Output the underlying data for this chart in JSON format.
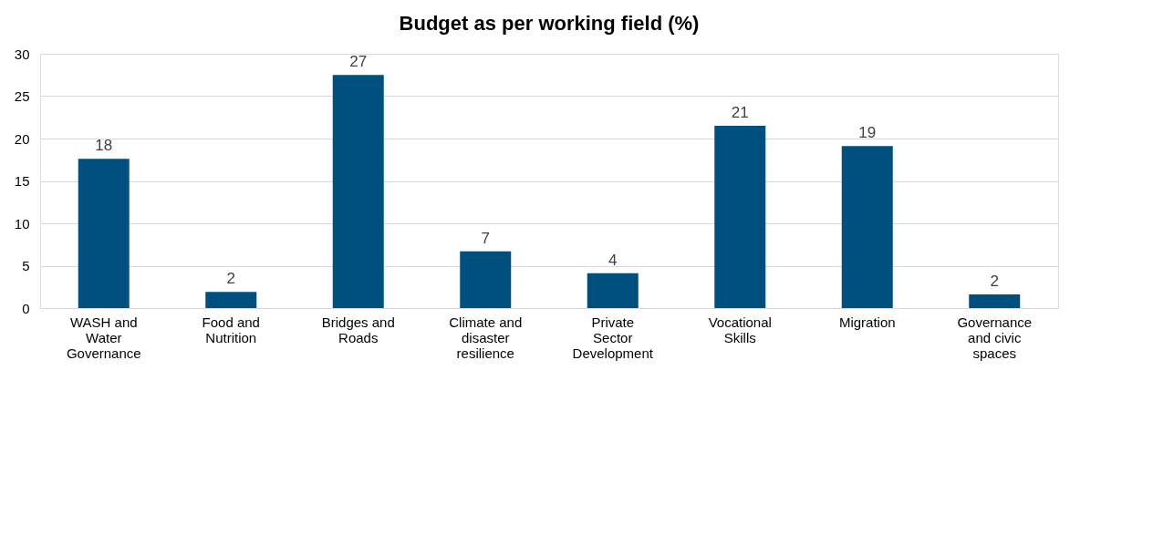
{
  "chart_data": {
    "type": "bar",
    "title": "Budget as per working field (%)",
    "categories": [
      "WASH and Water Governance",
      "Food and Nutrition",
      "Bridges and Roads",
      "Climate and disaster resilience",
      "Private Sector Development",
      "Vocational Skills",
      "Migration",
      "Governance and civic spaces"
    ],
    "values": [
      17.6,
      1.9,
      27.5,
      6.7,
      4.1,
      21.5,
      19.1,
      1.6
    ],
    "value_labels": [
      "18",
      "2",
      "27",
      "7",
      "4",
      "21",
      "19",
      "2"
    ],
    "color": "#00507f",
    "ylim": [
      0,
      30
    ],
    "yticks": [
      0,
      5,
      10,
      15,
      20,
      25,
      30
    ],
    "grid": "y"
  }
}
